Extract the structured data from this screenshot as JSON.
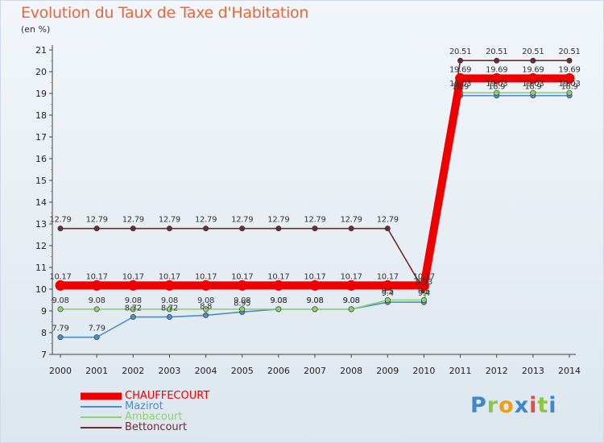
{
  "chart_data": {
    "type": "line",
    "title": "Evolution du Taux de Taxe d'Habitation",
    "unit_label": "(en %)",
    "x": [
      "2000",
      "2001",
      "2002",
      "2003",
      "2004",
      "2005",
      "2006",
      "2007",
      "2008",
      "2009",
      "2010",
      "2011",
      "2012",
      "2013",
      "2014"
    ],
    "ylim": [
      7,
      21
    ],
    "yticks": [
      7,
      8,
      9,
      10,
      11,
      12,
      13,
      14,
      15,
      16,
      17,
      18,
      19,
      20,
      21
    ],
    "grid": false,
    "legend_position": "bottom-left",
    "series": [
      {
        "name": "CHAUFFECOURT",
        "color": "#ee0000",
        "values": [
          10.17,
          10.17,
          10.17,
          10.17,
          10.17,
          10.17,
          10.17,
          10.17,
          10.17,
          10.17,
          10.17,
          19.69,
          19.69,
          19.69,
          19.69
        ],
        "labels": [
          "10.17",
          "10.17",
          "10.17",
          "10.17",
          "10.17",
          "10.17",
          "10.17",
          "10.17",
          "10.17",
          "10.17",
          "10.17",
          "19.69",
          "19.69",
          "19.69",
          "19.69"
        ]
      },
      {
        "name": "Mazirot",
        "color": "#4a8fc8",
        "values": [
          7.79,
          7.79,
          8.72,
          8.72,
          8.8,
          8.95,
          9.08,
          9.08,
          9.08,
          9.4,
          9.4,
          18.9,
          18.9,
          18.9,
          18.9
        ],
        "labels": [
          "7.79",
          "7.79",
          "8.72",
          "8.72",
          "8.8",
          "8.95",
          "9.08",
          "9.08",
          "9.08",
          "9.4",
          "9.4",
          "18.9",
          "18.9",
          "18.9",
          "18.9"
        ]
      },
      {
        "name": "Ambacourt",
        "color": "#8ed16a",
        "values": [
          9.08,
          9.08,
          9.08,
          9.08,
          9.08,
          9.08,
          9.08,
          9.08,
          9.08,
          9.5,
          9.5,
          19.03,
          19.03,
          19.03,
          19.03
        ],
        "labels": [
          "9.08",
          "9.08",
          "9.08",
          "9.08",
          "9.08",
          "9.08",
          "9.08",
          "9.08",
          "9.08",
          "9.5",
          "9.5",
          "19.03",
          "19.03",
          "19.03",
          "19.03"
        ]
      },
      {
        "name": "Bettoncourt",
        "color": "#6e2b2b",
        "values": [
          12.79,
          12.79,
          12.79,
          12.79,
          12.79,
          12.79,
          12.79,
          12.79,
          12.79,
          12.79,
          9.93,
          20.51,
          20.51,
          20.51,
          20.51
        ],
        "labels": [
          "12.79",
          "12.79",
          "12.79",
          "12.79",
          "12.79",
          "12.79",
          "12.79",
          "12.79",
          "12.79",
          "12.79",
          "9.93",
          "20.51",
          "20.51",
          "20.51",
          "20.51"
        ]
      }
    ]
  },
  "logo": {
    "letters": [
      "P",
      "r",
      "o",
      "x",
      "i",
      "t",
      "i"
    ],
    "colors": [
      "#3e87c8",
      "#8cc63f",
      "#f39c12",
      "#3e87c8",
      "#e74c3c",
      "#8cc63f",
      "#3e87c8"
    ]
  }
}
